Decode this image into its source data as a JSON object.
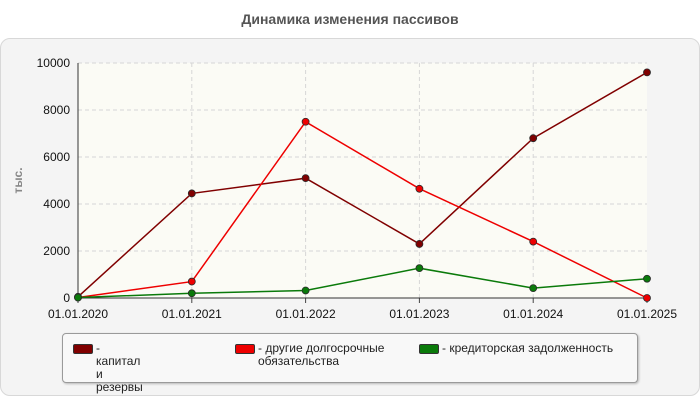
{
  "chart_data": {
    "type": "line",
    "title": "Динамика изменения пассивов",
    "ylabel": "тыс.",
    "xlabel": "",
    "categories": [
      "01.01.2020",
      "01.01.2021",
      "01.01.2022",
      "01.01.2023",
      "01.01.2024",
      "01.01.2025"
    ],
    "ylim": [
      0,
      10000
    ],
    "yticks": [
      "0",
      "2000",
      "4000",
      "6000",
      "8000",
      "10000"
    ],
    "grid": true,
    "legend_position": "bottom",
    "series": [
      {
        "name": "- капитал и резервы",
        "color": "#800000",
        "values": [
          50,
          4450,
          5100,
          2300,
          6800,
          9600
        ]
      },
      {
        "name": "- другие долгосрочные обязательства",
        "color": "#ee0000",
        "values": [
          20,
          700,
          7500,
          4650,
          2400,
          0
        ]
      },
      {
        "name": "- кредиторская задолженность",
        "color": "#0a7a0a",
        "values": [
          20,
          200,
          320,
          1270,
          420,
          820
        ]
      }
    ]
  }
}
